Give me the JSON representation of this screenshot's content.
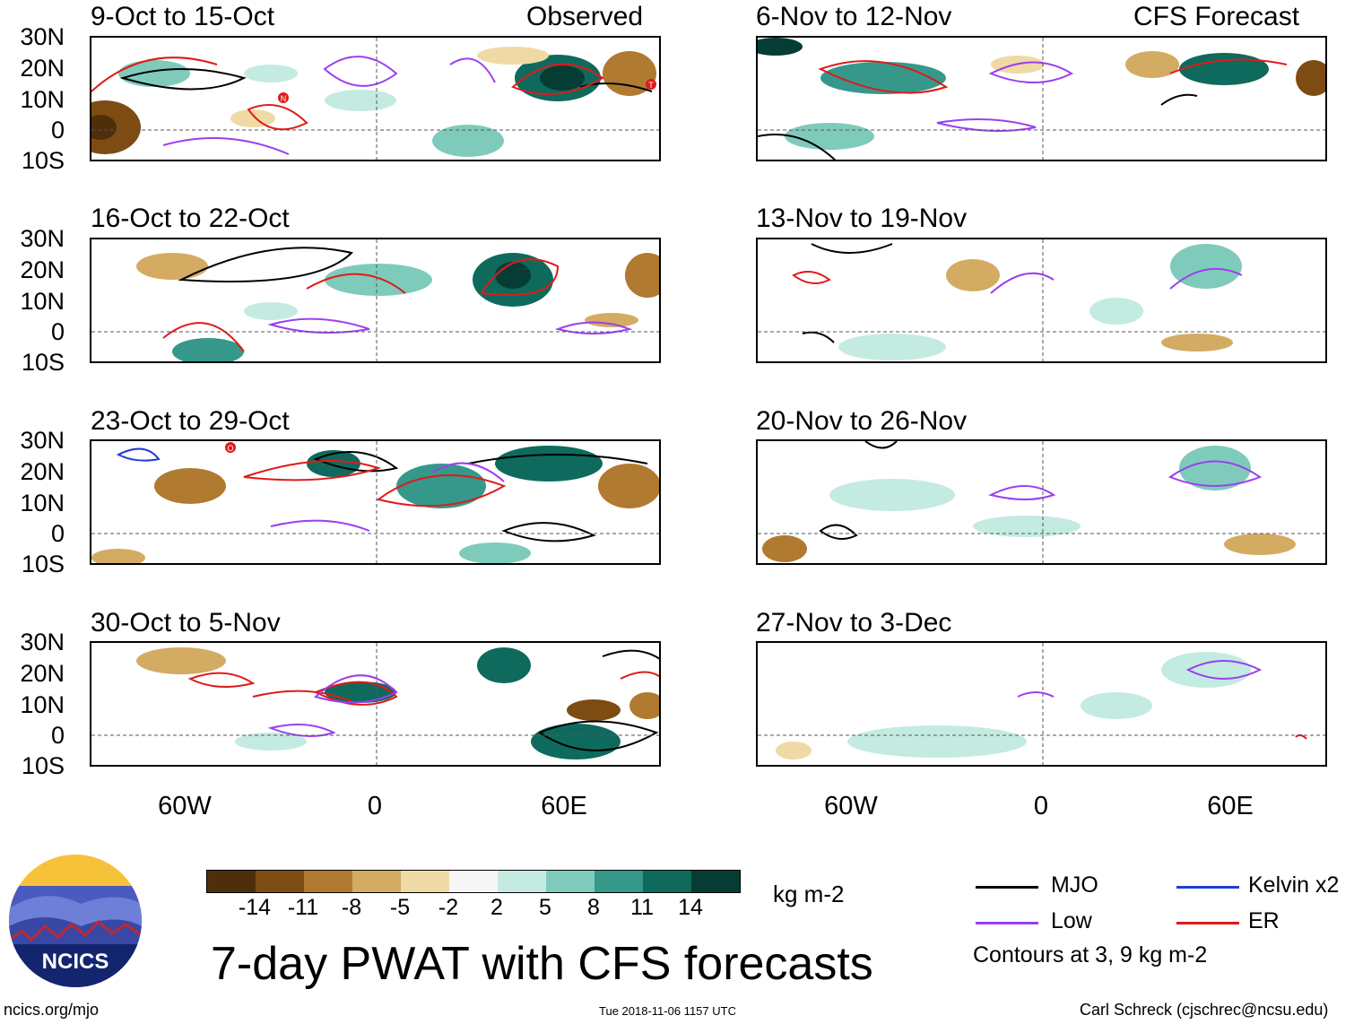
{
  "title": "7-day PWAT with CFS forecasts",
  "observed_label": "Observed",
  "forecast_label": "CFS Forecast",
  "observed_panels": [
    {
      "period": "9-Oct to 15-Oct"
    },
    {
      "period": "16-Oct to 22-Oct"
    },
    {
      "period": "23-Oct to 29-Oct"
    },
    {
      "period": "30-Oct to 5-Nov"
    }
  ],
  "forecast_panels": [
    {
      "period": "6-Nov to 12-Nov"
    },
    {
      "period": "13-Nov to 19-Nov"
    },
    {
      "period": "20-Nov to 26-Nov"
    },
    {
      "period": "27-Nov to 3-Dec"
    }
  ],
  "lat_labels": [
    "30N",
    "20N",
    "10N",
    "0",
    "10S"
  ],
  "lon_labels": [
    "60W",
    "0",
    "60E"
  ],
  "colorbar": {
    "unit": "kg m-2",
    "ticks": [
      "-14",
      "-11",
      "-8",
      "-5",
      "-2",
      "2",
      "5",
      "8",
      "11",
      "14"
    ],
    "colors": [
      "#4f2f0a",
      "#7d4c13",
      "#b07a30",
      "#d4ab63",
      "#efd9a5",
      "#f7f7f7",
      "#c4ebe1",
      "#7fcbbb",
      "#35988b",
      "#0e6a5d",
      "#053d35"
    ]
  },
  "legend": {
    "mjo": {
      "label": "MJO",
      "color": "#000000"
    },
    "kelvin": {
      "label": "Kelvin x2",
      "color": "#1f3fd6"
    },
    "low": {
      "label": "Low",
      "color": "#9b3ff0"
    },
    "er": {
      "label": "ER",
      "color": "#e01a1a"
    },
    "contours_note": "Contours at 3, 9 kg m-2"
  },
  "logo_text": "NCICS",
  "website": "ncics.org/mjo",
  "timestamp": "Tue 2018-11-06 1157 UTC",
  "credit": "Carl Schreck (cjschrec@ncsu.edu)",
  "storm_markers": [
    "N",
    "T",
    "O"
  ]
}
